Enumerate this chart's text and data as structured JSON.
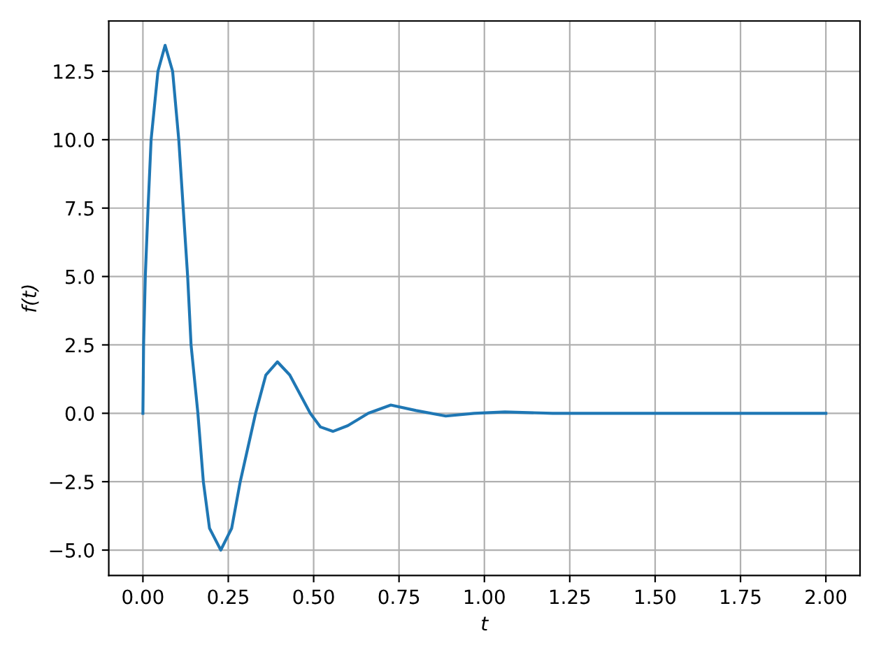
{
  "chart_data": {
    "type": "line",
    "xlabel": "t",
    "ylabel": "f(t)",
    "x": [
      0,
      0.002,
      0.007,
      0.015,
      0.024,
      0.044,
      0.065,
      0.087,
      0.105,
      0.118,
      0.131,
      0.141,
      0.161,
      0.177,
      0.195,
      0.228,
      0.26,
      0.285,
      0.33,
      0.36,
      0.394,
      0.43,
      0.49,
      0.52,
      0.557,
      0.6,
      0.66,
      0.726,
      0.8,
      0.887,
      0.97,
      1.06,
      1.2,
      2.0
    ],
    "series": [
      {
        "color": "#1f77b4",
        "values": [
          0,
          2.5,
          5.0,
          7.5,
          10.0,
          12.5,
          13.45,
          12.5,
          10.0,
          7.5,
          5.0,
          2.5,
          0,
          -2.5,
          -4.2,
          -5.0,
          -4.2,
          -2.5,
          0,
          1.4,
          1.88,
          1.4,
          0,
          -0.5,
          -0.66,
          -0.45,
          0,
          0.3,
          0.1,
          -0.1,
          0,
          0.05,
          0,
          0
        ]
      }
    ],
    "xlim": [
      -0.1,
      2.1
    ],
    "ylim": [
      -5.93,
      14.34
    ],
    "xticks": [
      {
        "value": 0,
        "label": "0.00"
      },
      {
        "value": 0.25,
        "label": "0.25"
      },
      {
        "value": 0.5,
        "label": "0.50"
      },
      {
        "value": 0.75,
        "label": "0.75"
      },
      {
        "value": 1,
        "label": "1.00"
      },
      {
        "value": 1.25,
        "label": "1.25"
      },
      {
        "value": 1.5,
        "label": "1.50"
      },
      {
        "value": 1.75,
        "label": "1.75"
      },
      {
        "value": 2,
        "label": "2.00"
      }
    ],
    "yticks": [
      {
        "value": -5,
        "label": "−5.0"
      },
      {
        "value": -2.5,
        "label": "−2.5"
      },
      {
        "value": 0,
        "label": "0.0"
      },
      {
        "value": 2.5,
        "label": "2.5"
      },
      {
        "value": 5,
        "label": "5.0"
      },
      {
        "value": 7.5,
        "label": "7.5"
      },
      {
        "value": 10,
        "label": "10.0"
      },
      {
        "value": 12.5,
        "label": "12.5"
      }
    ],
    "grid": true,
    "marker": "none",
    "line_style": "solid"
  }
}
